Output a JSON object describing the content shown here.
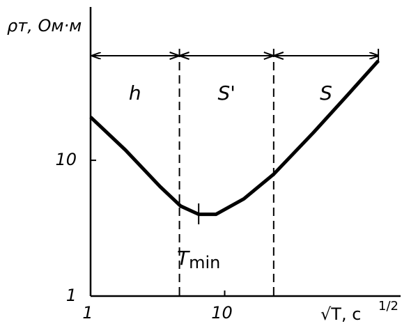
{
  "chart_data": {
    "type": "line",
    "y_label": "ρт, Ом·м",
    "x_label": "√T, c",
    "x_label_power": "1/2",
    "x": [
      1,
      1.82,
      3.3,
      4.7,
      6.4,
      8.6,
      13.9,
      23.2,
      45.9,
      83.6,
      140
    ],
    "values": [
      20.8,
      11.9,
      6.4,
      4.6,
      4.0,
      4.0,
      5.2,
      7.9,
      16.0,
      30.7,
      54.1
    ],
    "color": "#000000",
    "xscale": "log",
    "yscale": "log",
    "xlim": [
      1,
      205
    ],
    "ylim": [
      1,
      130
    ],
    "xticks": [
      1,
      10
    ],
    "yticks": [
      1,
      10
    ],
    "boundaries": [
      4.6,
      23.2
    ],
    "arrow_range": [
      1,
      140
    ],
    "region_labels": [
      "h",
      "S'",
      "S"
    ],
    "min_x": 6.4,
    "min_label": "T",
    "min_label_sub": "min"
  }
}
